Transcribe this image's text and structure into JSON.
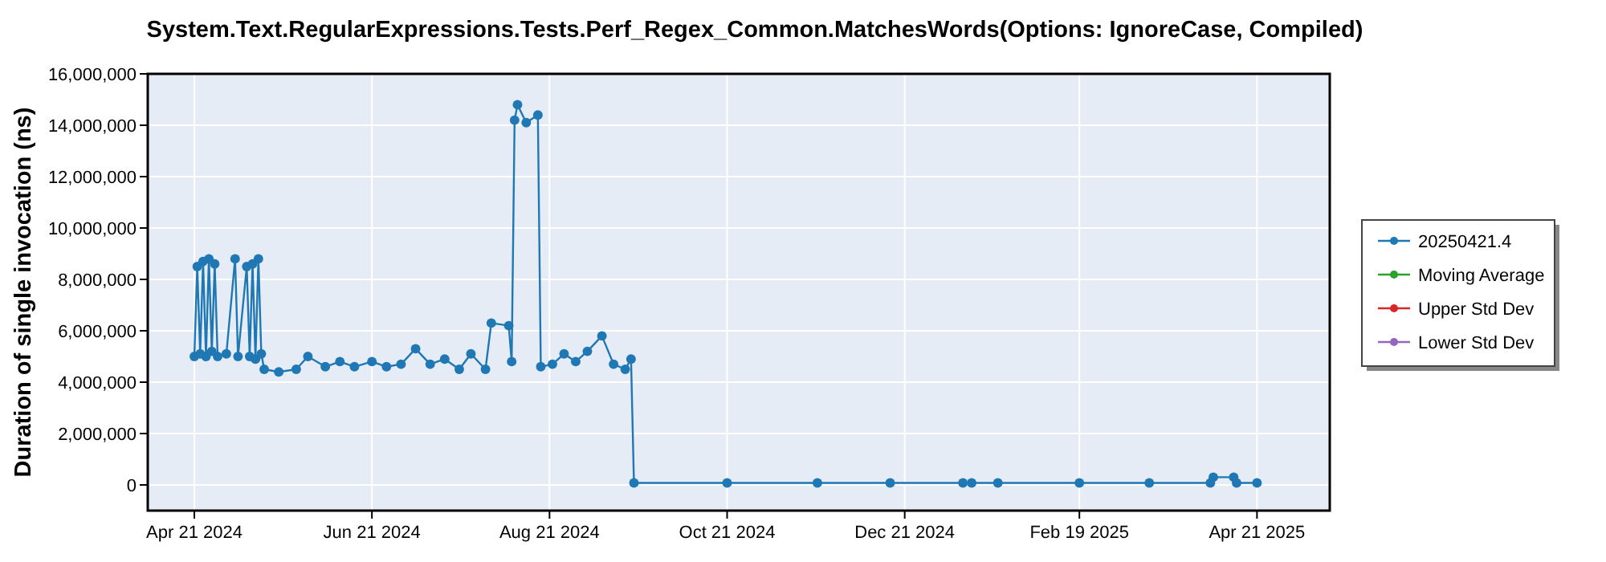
{
  "chart_data": {
    "type": "line",
    "title": "System.Text.RegularExpressions.Tests.Perf_Regex_Common.MatchesWords(Options: IgnoreCase, Compiled)",
    "ylabel": "Duration of single invocation (ns)",
    "x": [
      "2024-04-21",
      "2024-04-22",
      "2024-04-23",
      "2024-04-24",
      "2024-04-25",
      "2024-04-26",
      "2024-04-27",
      "2024-04-28",
      "2024-04-29",
      "2024-05-02",
      "2024-05-05",
      "2024-05-06",
      "2024-05-09",
      "2024-05-10",
      "2024-05-11",
      "2024-05-12",
      "2024-05-13",
      "2024-05-14",
      "2024-05-15",
      "2024-05-20",
      "2024-05-26",
      "2024-05-30",
      "2024-06-05",
      "2024-06-10",
      "2024-06-15",
      "2024-06-21",
      "2024-06-26",
      "2024-07-01",
      "2024-07-06",
      "2024-07-11",
      "2024-07-16",
      "2024-07-21",
      "2024-07-25",
      "2024-07-30",
      "2024-08-01",
      "2024-08-07",
      "2024-08-08",
      "2024-08-09",
      "2024-08-10",
      "2024-08-13",
      "2024-08-17",
      "2024-08-18",
      "2024-08-22",
      "2024-08-26",
      "2024-08-30",
      "2024-09-03",
      "2024-09-08",
      "2024-09-12",
      "2024-09-16",
      "2024-09-18",
      "2024-09-19",
      "2024-10-21",
      "2024-11-21",
      "2024-12-16",
      "2025-01-10",
      "2025-01-13",
      "2025-01-22",
      "2025-02-19",
      "2025-03-15",
      "2025-04-05",
      "2025-04-06",
      "2025-04-13",
      "2025-04-14",
      "2025-04-21"
    ],
    "series": [
      {
        "name": "20250421.4",
        "color": "#1f77b4",
        "values": [
          5000000,
          8500000,
          5100000,
          8700000,
          5000000,
          8800000,
          5200000,
          8600000,
          5000000,
          5100000,
          8800000,
          5000000,
          8500000,
          5000000,
          8600000,
          4900000,
          8800000,
          5100000,
          4500000,
          4400000,
          4500000,
          5000000,
          4600000,
          4800000,
          4600000,
          4800000,
          4600000,
          4700000,
          5300000,
          4700000,
          4900000,
          4500000,
          5100000,
          4500000,
          6300000,
          6200000,
          4800000,
          14200000,
          14800000,
          14100000,
          14400000,
          4600000,
          4700000,
          5100000,
          4800000,
          5200000,
          5800000,
          4700000,
          4500000,
          4900000,
          80000,
          80000,
          80000,
          80000,
          80000,
          80000,
          80000,
          80000,
          80000,
          80000,
          300000,
          300000,
          80000,
          80000
        ]
      },
      {
        "name": "Moving Average",
        "color": "#2ca02c",
        "values": [
          null,
          null,
          null,
          null,
          null,
          null,
          null,
          null,
          null,
          null,
          null,
          null,
          null,
          null,
          null,
          null,
          null,
          null,
          null,
          null,
          null,
          null,
          null,
          null,
          null,
          null,
          null,
          null,
          null,
          null,
          null,
          null,
          null,
          null,
          null,
          null,
          null,
          null,
          null,
          null,
          null,
          null,
          null,
          null,
          null,
          null,
          null,
          null,
          null,
          null,
          null,
          null,
          null,
          null,
          null,
          null,
          null,
          null,
          null,
          null,
          null,
          null,
          null,
          null
        ]
      },
      {
        "name": "Upper Std Dev",
        "color": "#d62728",
        "values": [
          null,
          null,
          null,
          null,
          null,
          null,
          null,
          null,
          null,
          null,
          null,
          null,
          null,
          null,
          null,
          null,
          null,
          null,
          null,
          null,
          null,
          null,
          null,
          null,
          null,
          null,
          null,
          null,
          null,
          null,
          null,
          null,
          null,
          null,
          null,
          null,
          null,
          null,
          null,
          null,
          null,
          null,
          null,
          null,
          null,
          null,
          null,
          null,
          null,
          null,
          null,
          null,
          null,
          null,
          null,
          null,
          null,
          null,
          null,
          null,
          null,
          null,
          null,
          null
        ]
      },
      {
        "name": "Lower Std Dev",
        "color": "#9467bd",
        "values": [
          null,
          null,
          null,
          null,
          null,
          null,
          null,
          null,
          null,
          null,
          null,
          null,
          null,
          null,
          null,
          null,
          null,
          null,
          null,
          null,
          null,
          null,
          null,
          null,
          null,
          null,
          null,
          null,
          null,
          null,
          null,
          null,
          null,
          null,
          null,
          null,
          null,
          null,
          null,
          null,
          null,
          null,
          null,
          null,
          null,
          null,
          null,
          null,
          null,
          null,
          null,
          null,
          null,
          null,
          null,
          null,
          null,
          null,
          null,
          null,
          null,
          null,
          null,
          null
        ]
      }
    ],
    "xlim": [
      "2024-04-05",
      "2025-05-16"
    ],
    "xticks": [
      {
        "value": "2024-04-21",
        "label": "Apr 21 2024"
      },
      {
        "value": "2024-06-21",
        "label": "Jun 21 2024"
      },
      {
        "value": "2024-08-21",
        "label": "Aug 21 2024"
      },
      {
        "value": "2024-10-21",
        "label": "Oct 21 2024"
      },
      {
        "value": "2024-12-21",
        "label": "Dec 21 2024"
      },
      {
        "value": "2025-02-19",
        "label": "Feb 19 2025"
      },
      {
        "value": "2025-04-21",
        "label": "Apr 21 2025"
      }
    ],
    "ylim": [
      -1000000,
      16000000
    ],
    "yticks": [
      {
        "value": 0,
        "label": "0"
      },
      {
        "value": 2000000,
        "label": "2,000,000"
      },
      {
        "value": 4000000,
        "label": "4,000,000"
      },
      {
        "value": 6000000,
        "label": "6,000,000"
      },
      {
        "value": 8000000,
        "label": "8,000,000"
      },
      {
        "value": 10000000,
        "label": "10,000,000"
      },
      {
        "value": 12000000,
        "label": "12,000,000"
      },
      {
        "value": 14000000,
        "label": "14,000,000"
      },
      {
        "value": 16000000,
        "label": "16,000,000"
      }
    ],
    "grid": true,
    "legend": "right",
    "marker": "circle",
    "line_style": "solid"
  }
}
